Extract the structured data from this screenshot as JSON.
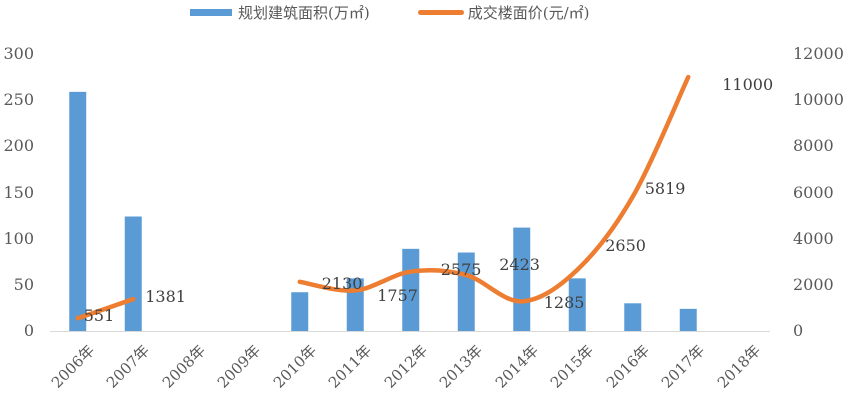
{
  "chart_data": {
    "type": "bar+line",
    "title": "",
    "categories": [
      "2006年",
      "2007年",
      "2008年",
      "2009年",
      "2010年",
      "2011年",
      "2012年",
      "2013年",
      "2014年",
      "2015年",
      "2016年",
      "2017年",
      "2018年"
    ],
    "series": [
      {
        "name": "规划建筑面积(万㎡)",
        "type": "bar",
        "axis": "left",
        "color": "#5b9bd5",
        "values": [
          259,
          124,
          null,
          null,
          42,
          57,
          89,
          85,
          112,
          57,
          30,
          24,
          null
        ]
      },
      {
        "name": "成交楼面价(元/㎡)",
        "type": "line",
        "axis": "right",
        "color": "#ed7d31",
        "values": [
          551,
          1381,
          null,
          null,
          2130,
          1757,
          2575,
          2423,
          1285,
          2650,
          5819,
          11000,
          null
        ],
        "data_labels": [
          "551",
          "1381",
          "",
          "",
          "2130",
          "1757",
          "2575",
          "2423",
          "1285",
          "2650",
          "5819",
          "11000",
          ""
        ]
      }
    ],
    "left_axis": {
      "min": 0,
      "max": 300,
      "ticks": [
        "0",
        "50",
        "100",
        "150",
        "200",
        "250",
        "300"
      ]
    },
    "right_axis": {
      "min": 0,
      "max": 12000,
      "ticks": [
        "0",
        "2000",
        "4000",
        "6000",
        "8000",
        "10000",
        "12000"
      ]
    },
    "xlabel": "",
    "ylabel_left": "",
    "ylabel_right": "",
    "grid": false,
    "legend_position": "top"
  },
  "legend": {
    "bar_label": "规划建筑面积(万㎡)",
    "line_label": "成交楼面价(元/㎡)"
  }
}
